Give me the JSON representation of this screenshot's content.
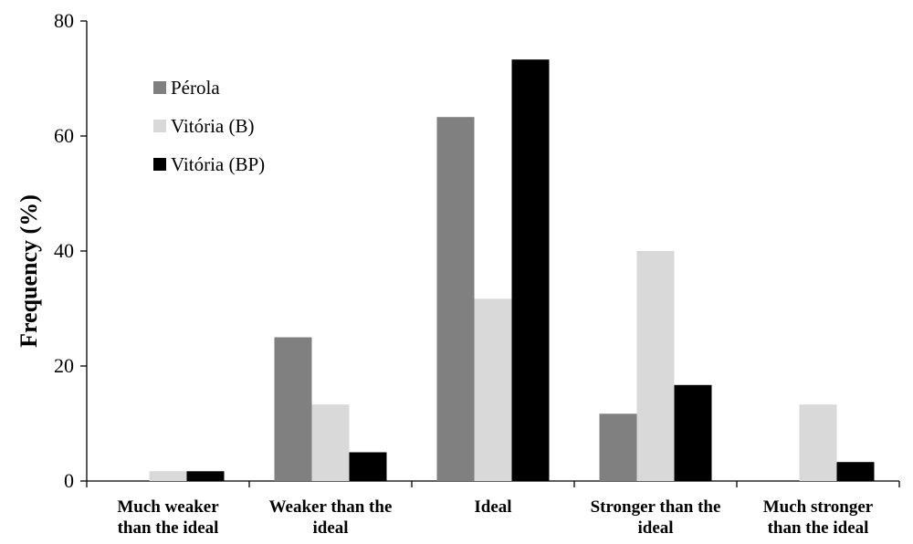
{
  "chart_data": {
    "type": "bar",
    "title": "",
    "ylabel": "Frequency  (%)",
    "xlabel": "",
    "ylim": [
      0,
      80
    ],
    "yticks": [
      0,
      20,
      40,
      60,
      80
    ],
    "grid": false,
    "legend_position": "top-left",
    "categories": [
      [
        "Much weaker",
        "than the ideal"
      ],
      [
        "Weaker than the",
        "ideal"
      ],
      [
        "Ideal"
      ],
      [
        "Stronger than the",
        "ideal"
      ],
      [
        "Much stronger",
        "than the ideal"
      ]
    ],
    "series": [
      {
        "name": "Pérola",
        "color": "#808080",
        "values": [
          0,
          25,
          63.3,
          11.7,
          0
        ]
      },
      {
        "name": "Vitória (B)",
        "color": "#d9d9d9",
        "values": [
          1.7,
          13.3,
          31.7,
          40,
          13.3
        ]
      },
      {
        "name": "Vitória (BP)",
        "color": "#000000",
        "values": [
          1.7,
          5,
          73.3,
          16.7,
          3.3
        ]
      }
    ]
  }
}
